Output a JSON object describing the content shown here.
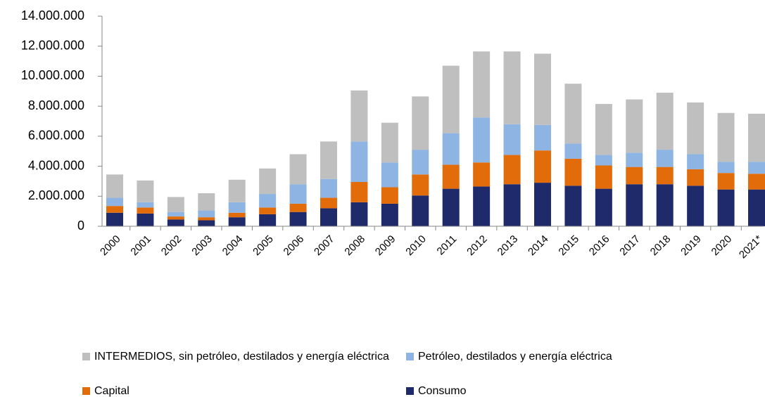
{
  "chart_data": {
    "type": "stacked_bar",
    "categories": [
      "2000",
      "2001",
      "2002",
      "2003",
      "2004",
      "2005",
      "2006",
      "2007",
      "2008",
      "2009",
      "2010",
      "2011",
      "2012",
      "2013",
      "2014",
      "2015",
      "2016",
      "2017",
      "2018",
      "2019",
      "2020",
      "2021*"
    ],
    "series": [
      {
        "name": "Consumo",
        "color": "#1f2a6b",
        "values": [
          900000,
          850000,
          450000,
          400000,
          600000,
          800000,
          950000,
          1200000,
          1600000,
          1500000,
          2050000,
          2500000,
          2650000,
          2800000,
          2900000,
          2700000,
          2500000,
          2800000,
          2800000,
          2700000,
          2450000,
          2450000
        ]
      },
      {
        "name": "Capital",
        "color": "#e36c0a",
        "values": [
          450000,
          400000,
          200000,
          200000,
          300000,
          450000,
          550000,
          700000,
          1350000,
          1100000,
          1400000,
          1600000,
          1600000,
          1950000,
          2150000,
          1800000,
          1550000,
          1150000,
          1150000,
          1100000,
          1100000,
          1050000
        ]
      },
      {
        "name": "Petróleo, destilados y energía eléctrica",
        "color": "#8db4e2",
        "values": [
          550000,
          350000,
          300000,
          450000,
          700000,
          900000,
          1300000,
          1250000,
          2700000,
          1650000,
          1650000,
          2100000,
          3000000,
          2050000,
          1700000,
          1000000,
          700000,
          950000,
          1150000,
          1000000,
          750000,
          800000
        ]
      },
      {
        "name": "INTERMEDIOS, sin petróleo, destilados y energía eléctrica",
        "color": "#bfbfbf",
        "values": [
          1550000,
          1450000,
          1000000,
          1150000,
          1500000,
          1700000,
          2000000,
          2500000,
          3400000,
          2650000,
          3550000,
          4500000,
          4400000,
          4850000,
          4750000,
          4000000,
          3400000,
          3550000,
          3800000,
          3450000,
          3250000,
          3200000
        ]
      }
    ],
    "ylim": [
      0,
      14000000
    ],
    "yticks": [
      0,
      {
        "value": 2000000,
        "label": "2.000.000"
      },
      {
        "value": 4000000,
        "label": "4.000.000"
      },
      {
        "value": 6000000,
        "label": "6.000.000"
      },
      {
        "value": 8000000,
        "label": "8.000.000"
      },
      {
        "value": 10000000,
        "label": "10.000.000"
      },
      {
        "value": 12000000,
        "label": "12.000.000"
      },
      {
        "value": 14000000,
        "label": "14.000.000"
      }
    ],
    "grid": false
  }
}
